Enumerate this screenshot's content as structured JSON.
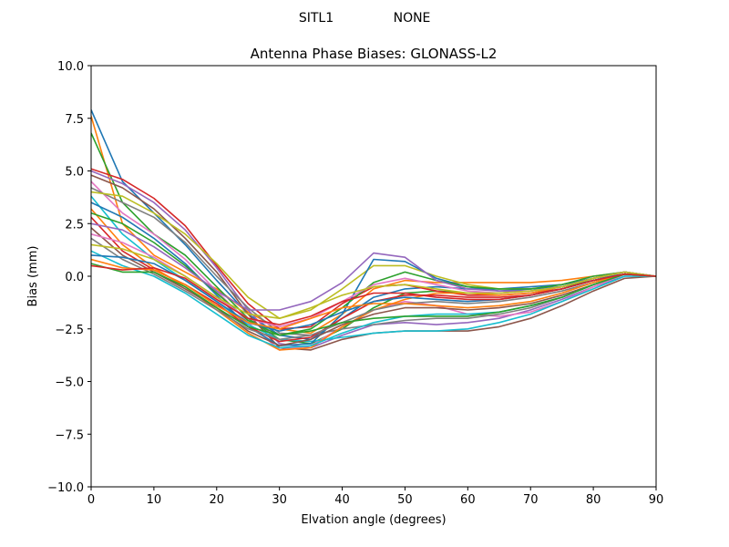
{
  "figure": {
    "suptitle_left": "SITL1",
    "suptitle_right": "NONE"
  },
  "chart_data": {
    "type": "line",
    "title": "Antenna Phase Biases: GLONASS-L2",
    "xlabel": "Elvation angle (degrees)",
    "ylabel": "Bias (mm)",
    "xlim": [
      0,
      90
    ],
    "ylim": [
      -10,
      10
    ],
    "xticks": [
      0,
      10,
      20,
      30,
      40,
      50,
      60,
      70,
      80,
      90
    ],
    "yticks": [
      -10.0,
      -7.5,
      -5.0,
      -2.5,
      0.0,
      2.5,
      5.0,
      7.5,
      10.0
    ],
    "x": [
      0,
      5,
      10,
      15,
      20,
      25,
      30,
      35,
      40,
      45,
      50,
      55,
      60,
      65,
      70,
      75,
      80,
      85,
      90
    ],
    "grid": false,
    "legend": false,
    "colors": [
      "#1f77b4",
      "#ff7f0e",
      "#2ca02c",
      "#d62728",
      "#9467bd",
      "#8c564b",
      "#e377c2",
      "#7f7f7f",
      "#bcbd22",
      "#17becf"
    ],
    "series": [
      {
        "values": [
          7.9,
          4.5,
          3.0,
          1.5,
          -0.2,
          -1.8,
          -2.8,
          -3.0,
          -2.0,
          -1.0,
          -0.6,
          -0.5,
          -0.6,
          -0.6,
          -0.5,
          -0.4,
          -0.1,
          0.1,
          0.0
        ]
      },
      {
        "values": [
          7.6,
          2.5,
          1.0,
          0.2,
          -0.6,
          -1.7,
          -2.5,
          -2.7,
          -1.8,
          -0.6,
          -0.2,
          -0.3,
          -0.3,
          -0.3,
          -0.3,
          -0.2,
          0.0,
          0.2,
          0.0
        ]
      },
      {
        "values": [
          6.8,
          3.5,
          2.0,
          1.0,
          -0.5,
          -2.0,
          -3.0,
          -3.2,
          -2.5,
          -1.5,
          -0.8,
          -0.7,
          -0.8,
          -0.8,
          -0.7,
          -0.5,
          -0.2,
          0.1,
          0.0
        ]
      },
      {
        "values": [
          5.1,
          4.6,
          3.7,
          2.4,
          0.5,
          -1.3,
          -2.5,
          -2.4,
          -1.3,
          -0.5,
          -0.4,
          -0.7,
          -0.9,
          -0.9,
          -0.8,
          -0.6,
          -0.2,
          0.1,
          0.0
        ]
      },
      {
        "values": [
          5.0,
          4.4,
          3.5,
          2.2,
          0.4,
          -1.6,
          -3.2,
          -3.4,
          -2.8,
          -2.3,
          -2.2,
          -2.3,
          -2.2,
          -2.0,
          -1.6,
          -1.1,
          -0.5,
          0.0,
          0.0
        ]
      },
      {
        "values": [
          4.8,
          4.2,
          3.2,
          1.8,
          0.2,
          -1.8,
          -3.4,
          -3.5,
          -3.0,
          -2.7,
          -2.6,
          -2.6,
          -2.6,
          -2.4,
          -2.0,
          -1.4,
          -0.7,
          -0.1,
          0.0
        ]
      },
      {
        "values": [
          4.5,
          3.0,
          2.0,
          0.8,
          -0.7,
          -2.2,
          -3.5,
          -3.3,
          -2.4,
          -1.6,
          -1.2,
          -1.4,
          -1.8,
          -1.9,
          -1.7,
          -1.2,
          -0.5,
          0.1,
          0.0
        ]
      },
      {
        "values": [
          4.2,
          3.5,
          2.8,
          1.6,
          0.0,
          -1.5,
          -2.7,
          -2.8,
          -2.5,
          -2.3,
          -2.1,
          -2.0,
          -2.0,
          -1.8,
          -1.5,
          -1.0,
          -0.4,
          0.1,
          0.0
        ]
      },
      {
        "values": [
          4.0,
          3.8,
          3.0,
          2.0,
          0.6,
          -1.0,
          -2.0,
          -1.6,
          -0.6,
          0.5,
          0.5,
          0.0,
          -0.4,
          -0.6,
          -0.6,
          -0.5,
          -0.1,
          0.2,
          0.0
        ]
      },
      {
        "values": [
          3.8,
          2.0,
          0.8,
          -0.2,
          -1.2,
          -2.3,
          -3.0,
          -3.1,
          -2.9,
          -2.7,
          -2.6,
          -2.6,
          -2.5,
          -2.2,
          -1.8,
          -1.2,
          -0.6,
          0.0,
          0.0
        ]
      },
      {
        "values": [
          3.5,
          2.8,
          1.8,
          0.6,
          -0.9,
          -2.4,
          -3.3,
          -3.2,
          -1.8,
          0.8,
          0.7,
          -0.1,
          -0.5,
          -0.7,
          -0.6,
          -0.5,
          -0.1,
          0.2,
          0.0
        ]
      },
      {
        "values": [
          3.2,
          1.5,
          0.4,
          -0.5,
          -1.6,
          -2.7,
          -3.5,
          -3.4,
          -2.4,
          -1.6,
          -1.1,
          -0.8,
          -0.8,
          -0.9,
          -0.8,
          -0.5,
          -0.1,
          0.2,
          0.0
        ]
      },
      {
        "values": [
          3.0,
          2.5,
          1.6,
          0.5,
          -0.8,
          -2.1,
          -2.8,
          -2.5,
          -1.5,
          -0.3,
          0.2,
          -0.2,
          -0.5,
          -0.6,
          -0.6,
          -0.4,
          0.0,
          0.2,
          0.0
        ]
      },
      {
        "values": [
          2.8,
          1.2,
          0.3,
          -0.4,
          -1.3,
          -2.4,
          -3.1,
          -2.9,
          -2.0,
          -1.2,
          -0.9,
          -0.9,
          -1.0,
          -1.0,
          -0.9,
          -0.6,
          -0.2,
          0.1,
          0.0
        ]
      },
      {
        "values": [
          2.5,
          2.2,
          1.4,
          0.4,
          -0.7,
          -1.6,
          -1.6,
          -1.2,
          -0.3,
          1.1,
          0.9,
          -0.2,
          -0.6,
          -0.7,
          -0.7,
          -0.5,
          -0.1,
          0.2,
          0.0
        ]
      },
      {
        "values": [
          2.3,
          1.0,
          0.2,
          -0.6,
          -1.5,
          -2.6,
          -3.3,
          -3.0,
          -2.3,
          -1.8,
          -1.5,
          -1.5,
          -1.6,
          -1.5,
          -1.3,
          -0.9,
          -0.4,
          0.1,
          0.0
        ]
      },
      {
        "values": [
          2.0,
          1.6,
          0.9,
          0.0,
          -1.0,
          -2.0,
          -2.4,
          -2.0,
          -1.2,
          -0.4,
          -0.1,
          -0.4,
          -0.7,
          -0.8,
          -0.7,
          -0.5,
          -0.1,
          0.2,
          0.0
        ]
      },
      {
        "values": [
          1.8,
          0.8,
          0.1,
          -0.7,
          -1.6,
          -2.5,
          -3.0,
          -2.8,
          -2.2,
          -1.6,
          -1.3,
          -1.2,
          -1.3,
          -1.2,
          -1.0,
          -0.7,
          -0.3,
          0.1,
          0.0
        ]
      },
      {
        "values": [
          1.5,
          1.3,
          0.8,
          0.0,
          -1.0,
          -1.8,
          -2.0,
          -1.5,
          -0.9,
          -0.5,
          -0.4,
          -0.6,
          -0.8,
          -0.8,
          -0.7,
          -0.5,
          -0.1,
          0.2,
          0.0
        ]
      },
      {
        "values": [
          1.2,
          0.5,
          0.0,
          -0.8,
          -1.8,
          -2.8,
          -3.4,
          -3.3,
          -2.7,
          -2.2,
          -1.9,
          -1.8,
          -1.8,
          -1.7,
          -1.4,
          -1.0,
          -0.4,
          0.1,
          0.0
        ]
      },
      {
        "values": [
          1.0,
          0.9,
          0.6,
          -0.2,
          -1.2,
          -2.2,
          -2.6,
          -2.3,
          -1.7,
          -1.2,
          -1.0,
          -1.1,
          -1.2,
          -1.1,
          -0.9,
          -0.6,
          -0.2,
          0.1,
          0.0
        ]
      },
      {
        "values": [
          0.8,
          0.4,
          0.3,
          -0.4,
          -1.4,
          -2.2,
          -2.5,
          -2.0,
          -1.5,
          -1.3,
          -1.3,
          -1.4,
          -1.5,
          -1.4,
          -1.2,
          -0.8,
          -0.3,
          0.1,
          0.0
        ]
      },
      {
        "values": [
          0.6,
          0.2,
          0.2,
          -0.5,
          -1.5,
          -2.4,
          -2.8,
          -2.6,
          -2.2,
          -2.0,
          -1.9,
          -1.9,
          -1.9,
          -1.7,
          -1.4,
          -1.0,
          -0.4,
          0.1,
          0.0
        ]
      },
      {
        "values": [
          0.5,
          0.3,
          0.4,
          -0.1,
          -1.1,
          -2.0,
          -2.3,
          -1.9,
          -1.2,
          -0.8,
          -0.8,
          -1.0,
          -1.1,
          -1.1,
          -0.9,
          -0.6,
          -0.2,
          0.1,
          0.0
        ]
      }
    ]
  }
}
